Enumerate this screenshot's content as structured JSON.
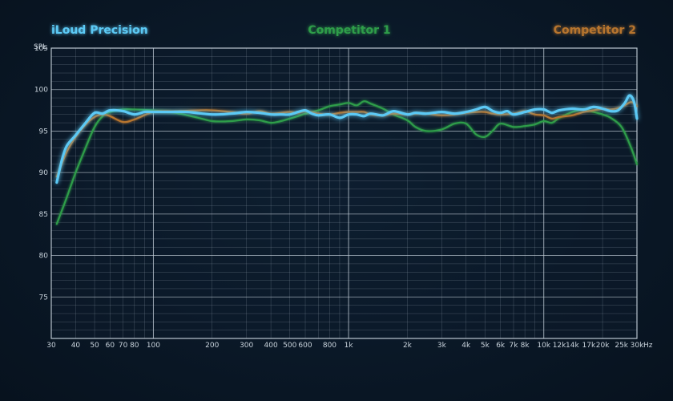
{
  "colors": {
    "background": "#0a1827",
    "grid_major": "#c7d2dc",
    "grid_minor": "#8c9aa8",
    "iloud": "#5cc9f5",
    "competitor1": "#2e9d4a",
    "competitor2": "#b7752f",
    "text": "#c9d3dc"
  },
  "chart_data": {
    "type": "line",
    "title": "",
    "ylabel": "SPL",
    "xlabel": "",
    "x_unit": "Hz",
    "x_scale": "log",
    "xlim": [
      30,
      30000
    ],
    "ylim": [
      70,
      105
    ],
    "grid": true,
    "y_ticks": [
      75,
      80,
      85,
      90,
      95,
      100,
      105
    ],
    "x_tick_labels": [
      {
        "v": 30,
        "label": "30"
      },
      {
        "v": 40,
        "label": "40"
      },
      {
        "v": 50,
        "label": "50"
      },
      {
        "v": 60,
        "label": "60"
      },
      {
        "v": 70,
        "label": "70"
      },
      {
        "v": 80,
        "label": "80"
      },
      {
        "v": 100,
        "label": "100"
      },
      {
        "v": 200,
        "label": "200"
      },
      {
        "v": 300,
        "label": "300"
      },
      {
        "v": 400,
        "label": "400"
      },
      {
        "v": 500,
        "label": "500"
      },
      {
        "v": 600,
        "label": "600"
      },
      {
        "v": 800,
        "label": "800"
      },
      {
        "v": 1000,
        "label": "1k"
      },
      {
        "v": 2000,
        "label": "2k"
      },
      {
        "v": 3000,
        "label": "3k"
      },
      {
        "v": 4000,
        "label": "4k"
      },
      {
        "v": 5000,
        "label": "5k"
      },
      {
        "v": 6000,
        "label": "6k"
      },
      {
        "v": 7000,
        "label": "7k"
      },
      {
        "v": 8000,
        "label": "8k"
      },
      {
        "v": 10000,
        "label": "10k"
      },
      {
        "v": 12000,
        "label": "12k"
      },
      {
        "v": 14000,
        "label": "14k"
      },
      {
        "v": 17000,
        "label": "17k"
      },
      {
        "v": 20000,
        "label": "20k"
      },
      {
        "v": 25000,
        "label": "25k"
      },
      {
        "v": 30000,
        "label": "30k"
      }
    ],
    "legend": [
      {
        "name": "iLoud Precision",
        "color": "#5cc9f5",
        "position": "top-left"
      },
      {
        "name": "Competitor 1",
        "color": "#2e9d4a",
        "position": "top-center"
      },
      {
        "name": "Competitor 2",
        "color": "#b7752f",
        "position": "top-right"
      }
    ],
    "series": [
      {
        "name": "Competitor 1",
        "color": "#2e9d4a",
        "x": [
          32,
          36,
          40,
          45,
          50,
          55,
          60,
          70,
          80,
          100,
          130,
          170,
          200,
          250,
          300,
          350,
          400,
          450,
          500,
          550,
          600,
          700,
          800,
          900,
          1000,
          1100,
          1200,
          1300,
          1500,
          1700,
          2000,
          2200,
          2500,
          3000,
          3500,
          4000,
          4500,
          5000,
          5500,
          6000,
          7000,
          8000,
          9000,
          10000,
          11000,
          12000,
          14000,
          16000,
          18000,
          20000,
          22000,
          25000,
          28000,
          30000
        ],
        "y": [
          83.8,
          87.0,
          90.0,
          93.0,
          95.5,
          96.8,
          97.3,
          97.6,
          97.6,
          97.5,
          97.2,
          96.6,
          96.2,
          96.2,
          96.4,
          96.3,
          96.0,
          96.2,
          96.5,
          96.8,
          97.1,
          97.5,
          98.0,
          98.2,
          98.4,
          98.1,
          98.6,
          98.3,
          97.7,
          97.0,
          96.3,
          95.5,
          95.0,
          95.2,
          95.9,
          95.9,
          94.6,
          94.3,
          95.1,
          95.9,
          95.5,
          95.6,
          95.8,
          96.2,
          96.0,
          96.6,
          97.3,
          97.6,
          97.3,
          97.0,
          96.6,
          95.5,
          93.0,
          91.0
        ]
      },
      {
        "name": "Competitor 2",
        "color": "#b7752f",
        "x": [
          32,
          36,
          40,
          45,
          50,
          55,
          60,
          70,
          80,
          100,
          130,
          170,
          200,
          250,
          300,
          350,
          400,
          450,
          500,
          550,
          600,
          700,
          800,
          900,
          1000,
          1100,
          1200,
          1300,
          1500,
          1700,
          2000,
          2200,
          2500,
          3000,
          3500,
          4000,
          4500,
          5000,
          5500,
          6000,
          7000,
          8000,
          9000,
          10000,
          11000,
          12000,
          14000,
          16000,
          18000,
          20000,
          22000,
          25000,
          28000,
          30000
        ],
        "y": [
          89.5,
          92.5,
          94.3,
          95.8,
          96.7,
          97.0,
          96.8,
          96.1,
          96.4,
          97.3,
          97.4,
          97.5,
          97.5,
          97.3,
          97.1,
          97.4,
          97.1,
          97.2,
          97.3,
          97.2,
          97.4,
          97.1,
          97.0,
          97.2,
          97.3,
          97.3,
          97.3,
          97.0,
          96.9,
          97.1,
          97.0,
          97.1,
          97.1,
          96.9,
          97.0,
          97.2,
          97.3,
          97.3,
          97.1,
          97.0,
          97.1,
          97.4,
          97.0,
          96.9,
          96.5,
          96.7,
          96.9,
          97.3,
          97.5,
          97.7,
          97.6,
          97.9,
          98.5,
          98.0
        ]
      },
      {
        "name": "iLoud Precision",
        "color": "#5cc9f5",
        "x": [
          32,
          34,
          36,
          40,
          45,
          50,
          55,
          60,
          70,
          80,
          90,
          100,
          120,
          150,
          200,
          250,
          300,
          350,
          400,
          450,
          500,
          550,
          600,
          650,
          700,
          800,
          900,
          1000,
          1100,
          1200,
          1300,
          1500,
          1700,
          2000,
          2200,
          2500,
          3000,
          3500,
          4000,
          4500,
          5000,
          5500,
          6000,
          6500,
          7000,
          8000,
          9000,
          10000,
          11000,
          12000,
          14000,
          16000,
          18000,
          20000,
          22000,
          24000,
          26000,
          27500,
          29000,
          30000
        ],
        "y": [
          88.8,
          91.5,
          93.2,
          94.5,
          96.0,
          97.2,
          97.1,
          97.5,
          97.4,
          97.0,
          97.3,
          97.3,
          97.3,
          97.3,
          97.0,
          97.1,
          97.3,
          97.2,
          97.0,
          97.0,
          97.0,
          97.3,
          97.5,
          97.1,
          96.9,
          97.0,
          96.6,
          97.0,
          97.0,
          96.8,
          97.1,
          96.9,
          97.4,
          97.0,
          97.2,
          97.1,
          97.3,
          97.1,
          97.3,
          97.6,
          97.9,
          97.4,
          97.2,
          97.4,
          97.0,
          97.3,
          97.6,
          97.6,
          97.2,
          97.5,
          97.7,
          97.6,
          97.9,
          97.7,
          97.4,
          97.5,
          98.4,
          99.3,
          98.5,
          96.5
        ]
      }
    ]
  }
}
